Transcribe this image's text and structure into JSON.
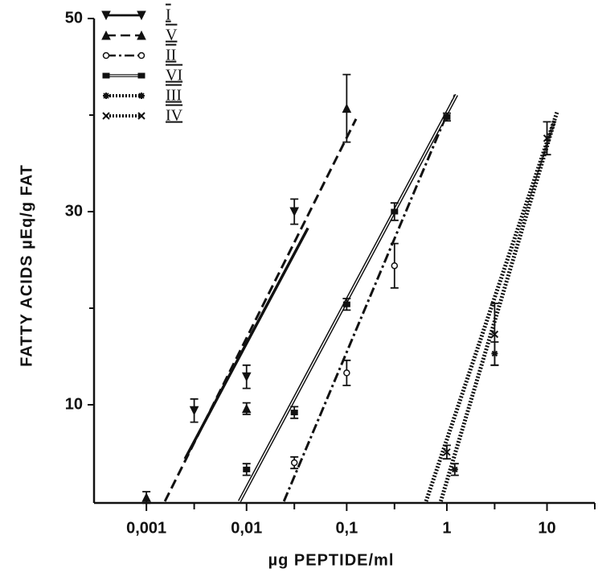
{
  "chart_data": {
    "type": "line",
    "x_label": "µg PEPTIDE/ml",
    "y_label": "FATTY ACIDS µEq/g FAT",
    "xscale": "log",
    "xlim": [
      0.0003,
      30
    ],
    "ylim": [
      0,
      50
    ],
    "xticks": [
      {
        "value": 0.001,
        "label": "0,001"
      },
      {
        "value": 0.01,
        "label": "0,01"
      },
      {
        "value": 0.1,
        "label": "0,1"
      },
      1,
      10
    ],
    "xminorticks": [
      0.003,
      0.03,
      0.3,
      3,
      30
    ],
    "yticks": [
      10,
      30,
      50
    ],
    "yminorticks": [
      20,
      40
    ],
    "legend": "upper left",
    "series": [
      {
        "name": "I",
        "color": "#111",
        "style": "solid",
        "marker": "triangle-down",
        "x": [
          0.003,
          0.01,
          0.03
        ],
        "values": [
          9.4,
          12.9,
          30
        ],
        "errors": [
          1.2,
          1.2,
          1.3
        ],
        "fit_x": [
          0.00243,
          0.041
        ],
        "fit_y": [
          4.4,
          28.3
        ]
      },
      {
        "name": "V",
        "color": "#111",
        "style": "dashed",
        "marker": "triangle-up",
        "x": [
          0.001,
          0.01,
          0.1
        ],
        "values": [
          0.4,
          9.6,
          40.7
        ],
        "errors": [
          0.6,
          0.6,
          3.5
        ],
        "fit_x": [
          0.00153,
          0.124
        ],
        "fit_y": [
          0,
          39.6
        ]
      },
      {
        "name": "II",
        "color": "#111",
        "style": "dashdot",
        "marker": "circle",
        "x": [
          0.03,
          0.1,
          0.3
        ],
        "values": [
          4,
          13.3,
          24.4
        ],
        "errors": [
          0.6,
          1.3,
          2.3
        ],
        "fit_x": [
          0.0236,
          1.23
        ],
        "fit_y": [
          0,
          42.3
        ]
      },
      {
        "name": "VI",
        "color": "#111",
        "style": "double",
        "marker": "square",
        "x": [
          0.01,
          0.03,
          0.1,
          0.3,
          1
        ],
        "values": [
          3.3,
          9.2,
          20.4,
          30,
          39.8
        ],
        "errors": [
          0.6,
          0.6,
          0.6,
          0.9,
          0.4
        ],
        "fit_x": [
          0.0085,
          1.25
        ],
        "fit_y": [
          0,
          42.1
        ]
      },
      {
        "name": "III",
        "color": "#111",
        "style": "dotted",
        "marker": "asterisk",
        "x": [
          1.2,
          3
        ],
        "values": [
          3.3,
          15.3
        ],
        "errors": [
          0.6,
          1.2
        ],
        "fit_x": [
          0.62,
          12.6
        ],
        "fit_y": [
          0,
          40.3
        ]
      },
      {
        "name": "IV",
        "color": "#111",
        "style": "dotted",
        "marker": "cross",
        "x": [
          1,
          3,
          10
        ],
        "values": [
          5.1,
          17.3,
          37.6
        ],
        "errors": [
          0.7,
          3.2,
          1.7
        ],
        "fit_x": [
          0.87,
          11.9
        ],
        "fit_y": [
          0,
          39.4
        ]
      }
    ]
  }
}
